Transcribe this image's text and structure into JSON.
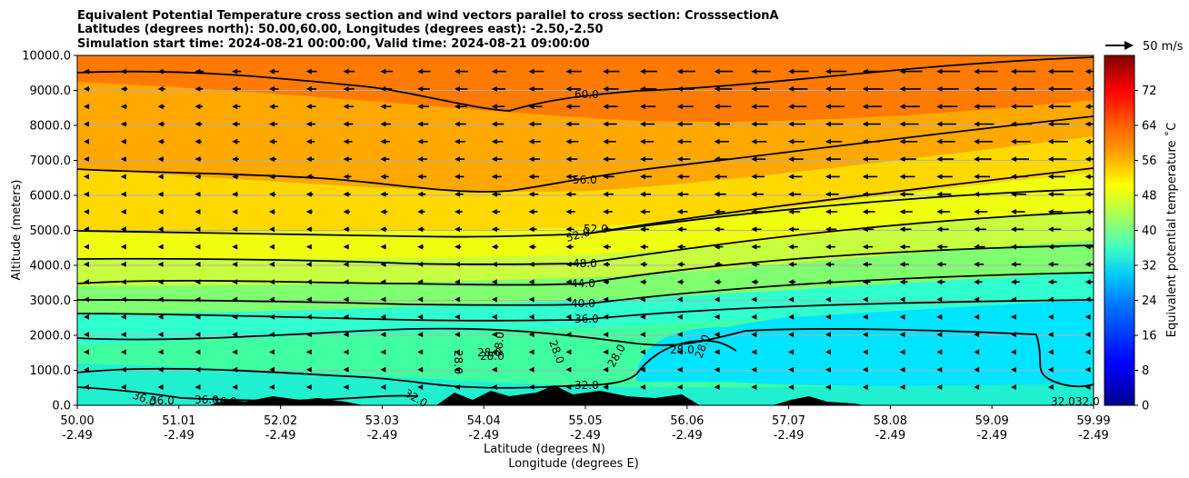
{
  "chart_data": {
    "type": "heatmap",
    "title": [
      "Equivalent Potential Temperature cross section and wind vectors parallel to cross section: CrosssectionA",
      "Latitudes (degrees north): 50.00,60.00, Longitudes (degrees east): -2.50,-2.50",
      "Simulation start time: 2024-08-21 00:00:00, Valid time: 2024-08-21 09:00:00"
    ],
    "ylabel": "Altitude (meters)",
    "xlabel": "Latitude (degrees N)",
    "xlabel2": "Longitude (degrees E)",
    "ylim": [
      0,
      10000
    ],
    "yticks": [
      "0.0",
      "1000.0",
      "2000.0",
      "3000.0",
      "4000.0",
      "5000.0",
      "6000.0",
      "7000.0",
      "8000.0",
      "9000.0",
      "10000.0"
    ],
    "x_lat_ticks": [
      "50.00",
      "51.01",
      "52.02",
      "53.03",
      "54.04",
      "55.05",
      "56.06",
      "57.07",
      "58.08",
      "59.09",
      "59.99"
    ],
    "x_lon_ticks": [
      "-2.49",
      "-2.49",
      "-2.49",
      "-2.49",
      "-2.49",
      "-2.49",
      "-2.49",
      "-2.49",
      "-2.49",
      "-2.49",
      "-2.49"
    ],
    "colorbar": {
      "label": "Equivalent potential temperature ˚C",
      "range": [
        0,
        80
      ],
      "ticks": [
        "0",
        "8",
        "16",
        "24",
        "32",
        "40",
        "48",
        "56",
        "64",
        "72"
      ]
    },
    "quiver_key": "50 m/s",
    "contour_labels": [
      "60.0",
      "56.0",
      "52.0",
      "52.0",
      "48.0",
      "44.0",
      "40.0",
      "36.0",
      "32.0",
      "32.0",
      "28.0",
      "28.0",
      "28.0",
      "28.0",
      "28.0",
      "28.0",
      "28.0",
      "28.0",
      "36.0",
      "36.0",
      "36.0",
      "36.0",
      "32.0",
      "32.0"
    ],
    "contour_levels": [
      28,
      32,
      36,
      40,
      44,
      48,
      52,
      56,
      60
    ],
    "grid": true
  }
}
